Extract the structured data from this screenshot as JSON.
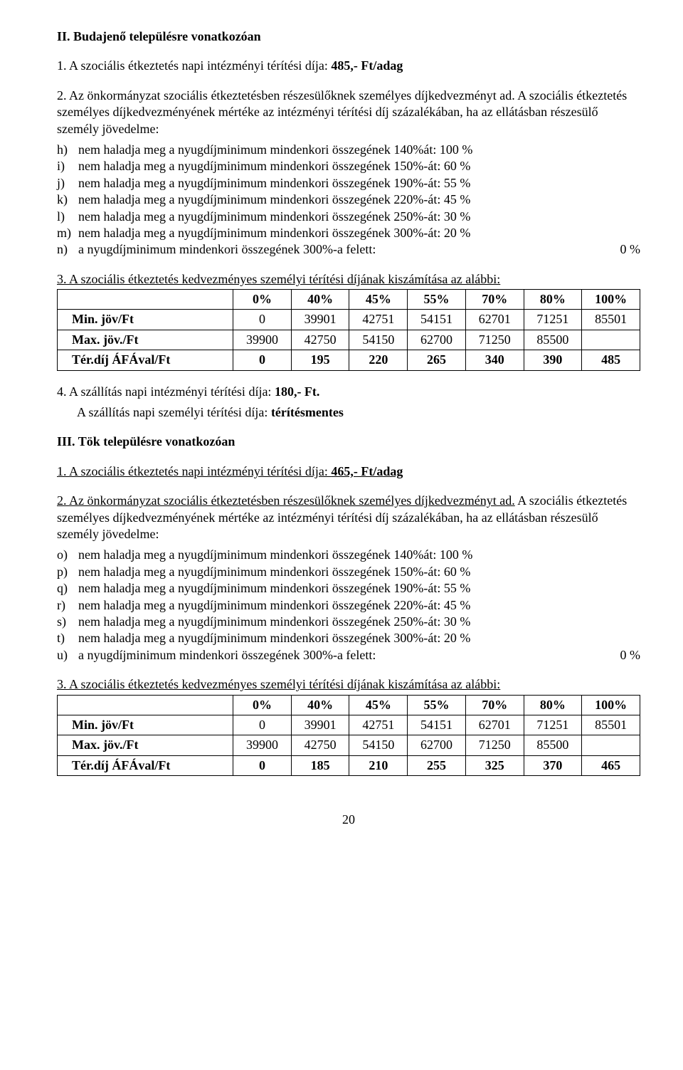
{
  "section2": {
    "title": "II. Budajenő településre vonatkozóan",
    "p1_prefix": "1. A szociális étkeztetés napi intézményi térítési díja: ",
    "p1_value": "485,- Ft/adag",
    "p2": "2. Az önkormányzat szociális étkeztetésben részesülőknek személyes díjkedvezményt ad. A szociális étkeztetés személyes díjkedvezményének mértéke az intézményi térítési díj százalékában, ha az ellátásban részesülő személy jövedelme:",
    "items": [
      {
        "m": "h)",
        "label": "nem haladja meg a nyugdíjminimum mindenkori összegének 140%át: 100 %",
        "value": ""
      },
      {
        "m": "i)",
        "label": "nem haladja meg a nyugdíjminimum mindenkori összegének 150%-át: 60 %",
        "value": ""
      },
      {
        "m": "j)",
        "label": "nem haladja meg a nyugdíjminimum mindenkori összegének 190%-át: 55 %",
        "value": ""
      },
      {
        "m": "k)",
        "label": "nem haladja meg a nyugdíjminimum mindenkori összegének 220%-át: 45 %",
        "value": ""
      },
      {
        "m": "l)",
        "label": "nem haladja meg a nyugdíjminimum mindenkori összegének  250%-át: 30 %",
        "value": ""
      },
      {
        "m": "m)",
        "label": "nem haladja meg a nyugdíjminimum mindenkori összegének 300%-át: 20 %",
        "value": ""
      },
      {
        "m": "n)",
        "label": "a nyugdíjminimum mindenkori összegének 300%-a felett:",
        "value": "0 %"
      }
    ],
    "table_caption": "3. A szociális étkeztetés kedvezményes személyi térítési díjának kiszámítása az alábbi:",
    "table": {
      "header": [
        "",
        "0%",
        "40%",
        "45%",
        "55%",
        "70%",
        "80%",
        "100%"
      ],
      "rows": [
        {
          "label": "Min. jöv/Ft",
          "cells": [
            "0",
            "39901",
            "42751",
            "54151",
            "62701",
            "71251",
            "85501"
          ]
        },
        {
          "label": "Max. jöv./Ft",
          "cells": [
            "39900",
            "42750",
            "54150",
            "62700",
            "71250",
            "85500",
            ""
          ]
        },
        {
          "label": "Tér.díj ÁFÁval/Ft",
          "cells": [
            "0",
            "195",
            "220",
            "265",
            "340",
            "390",
            "485"
          ]
        }
      ]
    },
    "p4_line1_prefix": "4.   A szállítás napi intézményi térítési díja: ",
    "p4_line1_value": "180,- Ft.",
    "p4_line2_prefix": "A szállítás napi személyi térítési díja: ",
    "p4_line2_value": "térítésmentes"
  },
  "section3": {
    "title": "III. Tök településre vonatkozóan",
    "p1_prefix": "1. A szociális étkeztetés napi intézményi térítési díja: ",
    "p1_value": "465,- Ft/adag",
    "p2_underline": "2. Az önkormányzat szociális étkeztetésben részesülőknek személyes díjkedvezményt ad.",
    "p2_rest": "A szociális étkeztetés személyes díjkedvezményének mértéke az intézményi térítési díj százalékában, ha az ellátásban részesülő személy jövedelme:",
    "items": [
      {
        "m": "o)",
        "label": "nem haladja meg a nyugdíjminimum mindenkori összegének 140%át: 100 %",
        "value": ""
      },
      {
        "m": "p)",
        "label": "nem haladja meg a nyugdíjminimum mindenkori összegének 150%-át: 60 %",
        "value": ""
      },
      {
        "m": "q)",
        "label": "nem haladja meg a nyugdíjminimum mindenkori összegének 190%-át: 55 %",
        "value": ""
      },
      {
        "m": "r)",
        "label": "nem haladja meg a nyugdíjminimum mindenkori összegének 220%-át: 45 %",
        "value": ""
      },
      {
        "m": "s)",
        "label": "nem haladja meg a nyugdíjminimum mindenkori összegének  250%-át: 30 %",
        "value": ""
      },
      {
        "m": "t)",
        "label": "nem haladja meg a nyugdíjminimum mindenkori összegének 300%-át: 20 %",
        "value": ""
      },
      {
        "m": "u)",
        "label": "a nyugdíjminimum mindenkori összegének 300%-a felett:",
        "value": "0 %"
      }
    ],
    "table_caption": "3. A szociális étkeztetés kedvezményes személyi térítési díjának kiszámítása az alábbi:",
    "table": {
      "header": [
        "",
        "0%",
        "40%",
        "45%",
        "55%",
        "70%",
        "80%",
        "100%"
      ],
      "rows": [
        {
          "label": "Min. jöv/Ft",
          "cells": [
            "0",
            "39901",
            "42751",
            "54151",
            "62701",
            "71251",
            "85501"
          ]
        },
        {
          "label": "Max. jöv./Ft",
          "cells": [
            "39900",
            "42750",
            "54150",
            "62700",
            "71250",
            "85500",
            ""
          ]
        },
        {
          "label": "Tér.díj ÁFÁval/Ft",
          "cells": [
            "0",
            "185",
            "210",
            "255",
            "325",
            "370",
            "465"
          ]
        }
      ]
    }
  },
  "page_number": "20"
}
